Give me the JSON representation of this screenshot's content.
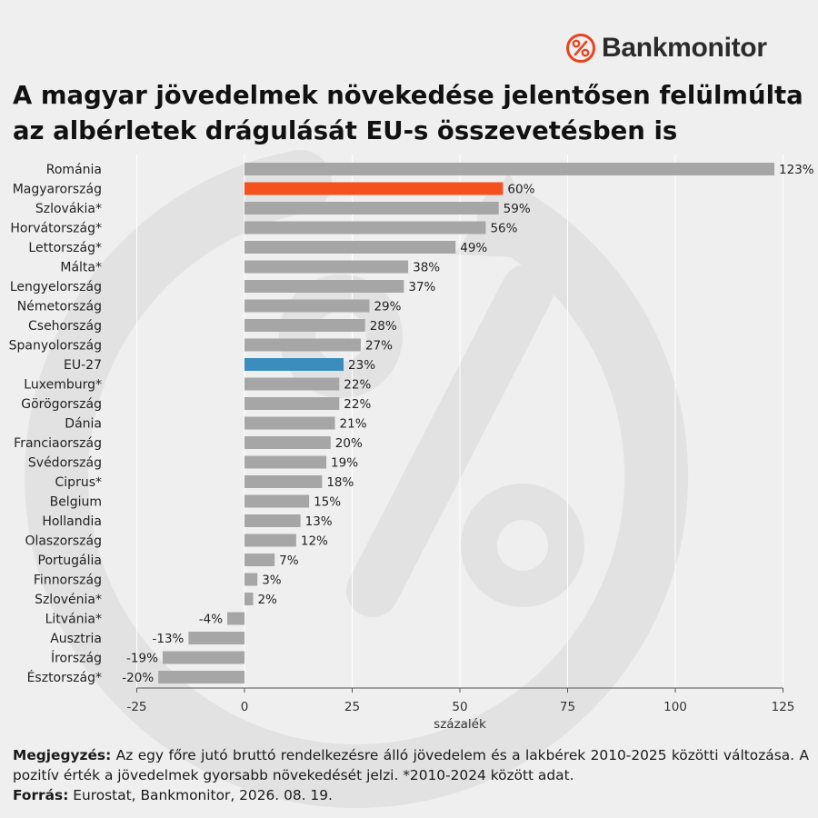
{
  "brand": {
    "name": "Bankmonitor",
    "icon": "percent-circle-icon",
    "color": "#e8441f"
  },
  "title": "A magyar jövedelmek növekedése jelentősen felülmúlta az albérletek drágulását EU-s összevetésben is",
  "footer": {
    "note_label": "Megjegyzés:",
    "note_text": "Az egy főre jutó bruttó rendelkezésre álló jövedelem és a lakbérek 2010-2025 közötti változása. A pozitív érték a jövedelmek gyorsabb növekedését jelzi. *2010-2024 között adat.",
    "source_label": "Forrás:",
    "source_text": "Eurostat, Bankmonitor, 2026. 08. 19."
  },
  "colors": {
    "default_bar": "#a6a6a6",
    "highlight_hungary": "#f4511e",
    "highlight_eu": "#3a8dbd",
    "background": "#efefef",
    "grid": "#ffffff"
  },
  "chart_data": {
    "type": "bar",
    "orientation": "horizontal",
    "xlabel": "százalék",
    "xlim": [
      -25,
      125
    ],
    "xticks": [
      -25,
      0,
      25,
      50,
      75,
      100,
      125
    ],
    "grid": true,
    "value_suffix": "%",
    "categories": [
      "Románia",
      "Magyarország",
      "Szlovákia*",
      "Horvátország*",
      "Lettország*",
      "Málta*",
      "Lengyelország",
      "Németország",
      "Csehország",
      "Spanyolország",
      "EU-27",
      "Luxemburg*",
      "Görögország",
      "Dánia",
      "Franciaország",
      "Svédország",
      "Ciprus*",
      "Belgium",
      "Hollandia",
      "Olaszország",
      "Portugália",
      "Finnország",
      "Szlovénia*",
      "Litvánia*",
      "Ausztria",
      "Írország",
      "Észtország*"
    ],
    "values": [
      123,
      60,
      59,
      56,
      49,
      38,
      37,
      29,
      28,
      27,
      23,
      22,
      22,
      21,
      20,
      19,
      18,
      15,
      13,
      12,
      7,
      3,
      2,
      -4,
      -13,
      -19,
      -20
    ],
    "highlights": {
      "Magyarország": "highlight_hungary",
      "EU-27": "highlight_eu"
    }
  }
}
